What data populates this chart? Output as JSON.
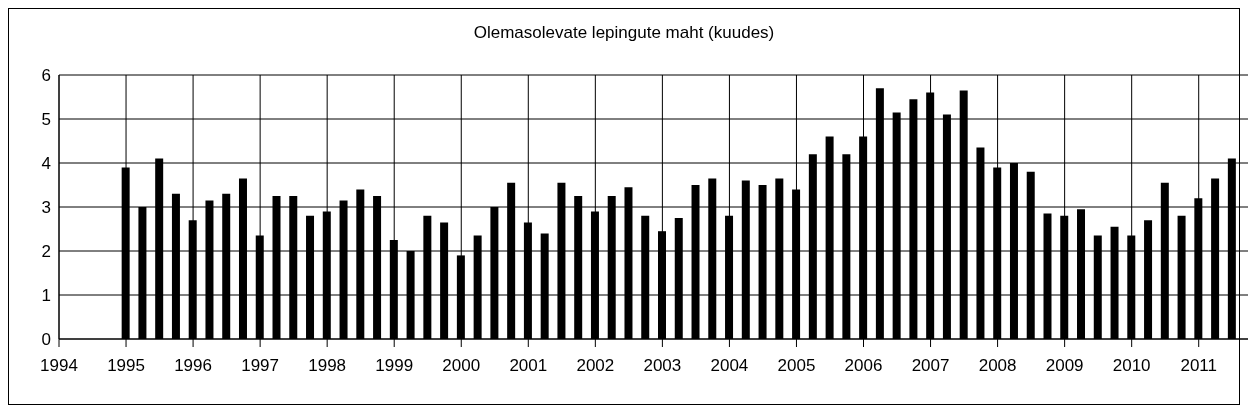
{
  "chart_data": {
    "type": "bar",
    "title": "Olemasolevate lepingute maht (kuudes)",
    "x": [
      1995,
      1995.25,
      1995.5,
      1995.75,
      1996,
      1996.25,
      1996.5,
      1996.75,
      1997,
      1997.25,
      1997.5,
      1997.75,
      1998,
      1998.25,
      1998.5,
      1998.75,
      1999,
      1999.25,
      1999.5,
      1999.75,
      2000,
      2000.25,
      2000.5,
      2000.75,
      2001,
      2001.25,
      2001.5,
      2001.75,
      2002,
      2002.25,
      2002.5,
      2002.75,
      2003,
      2003.25,
      2003.5,
      2003.75,
      2004,
      2004.25,
      2004.5,
      2004.75,
      2005,
      2005.25,
      2005.5,
      2005.75,
      2006,
      2006.25,
      2006.5,
      2006.75,
      2007,
      2007.25,
      2007.5,
      2007.75,
      2008,
      2008.25,
      2008.5,
      2008.75,
      2009,
      2009.25,
      2009.5,
      2009.75,
      2010,
      2010.25,
      2010.5,
      2010.75,
      2011,
      2011.25,
      2011.5
    ],
    "values": [
      3.9,
      3.0,
      4.1,
      3.3,
      2.7,
      3.15,
      3.3,
      3.65,
      2.35,
      3.25,
      3.25,
      2.8,
      2.9,
      3.15,
      3.4,
      3.25,
      2.25,
      2.0,
      2.8,
      2.65,
      1.9,
      2.35,
      3.0,
      3.55,
      2.65,
      2.4,
      3.55,
      3.25,
      2.9,
      3.25,
      3.45,
      2.8,
      2.45,
      2.75,
      3.5,
      3.65,
      2.8,
      3.6,
      3.5,
      3.65,
      3.4,
      4.2,
      4.6,
      4.2,
      4.6,
      5.7,
      5.15,
      5.45,
      5.6,
      5.1,
      5.65,
      4.35,
      3.9,
      4.0,
      3.8,
      2.85,
      2.8,
      2.95,
      2.35,
      2.55,
      2.35,
      2.7,
      3.55,
      2.8,
      3.2,
      3.65,
      4.1
    ],
    "color": "#000000",
    "xlim": [
      1994,
      2011.75
    ],
    "xticks": [
      1994,
      1995,
      1996,
      1997,
      1998,
      1999,
      2000,
      2001,
      2002,
      2003,
      2004,
      2005,
      2006,
      2007,
      2008,
      2009,
      2010,
      2011
    ],
    "ylim": [
      0,
      6
    ],
    "yticks": [
      0,
      1,
      2,
      3,
      4,
      5,
      6
    ],
    "grid": true,
    "legend": false
  }
}
